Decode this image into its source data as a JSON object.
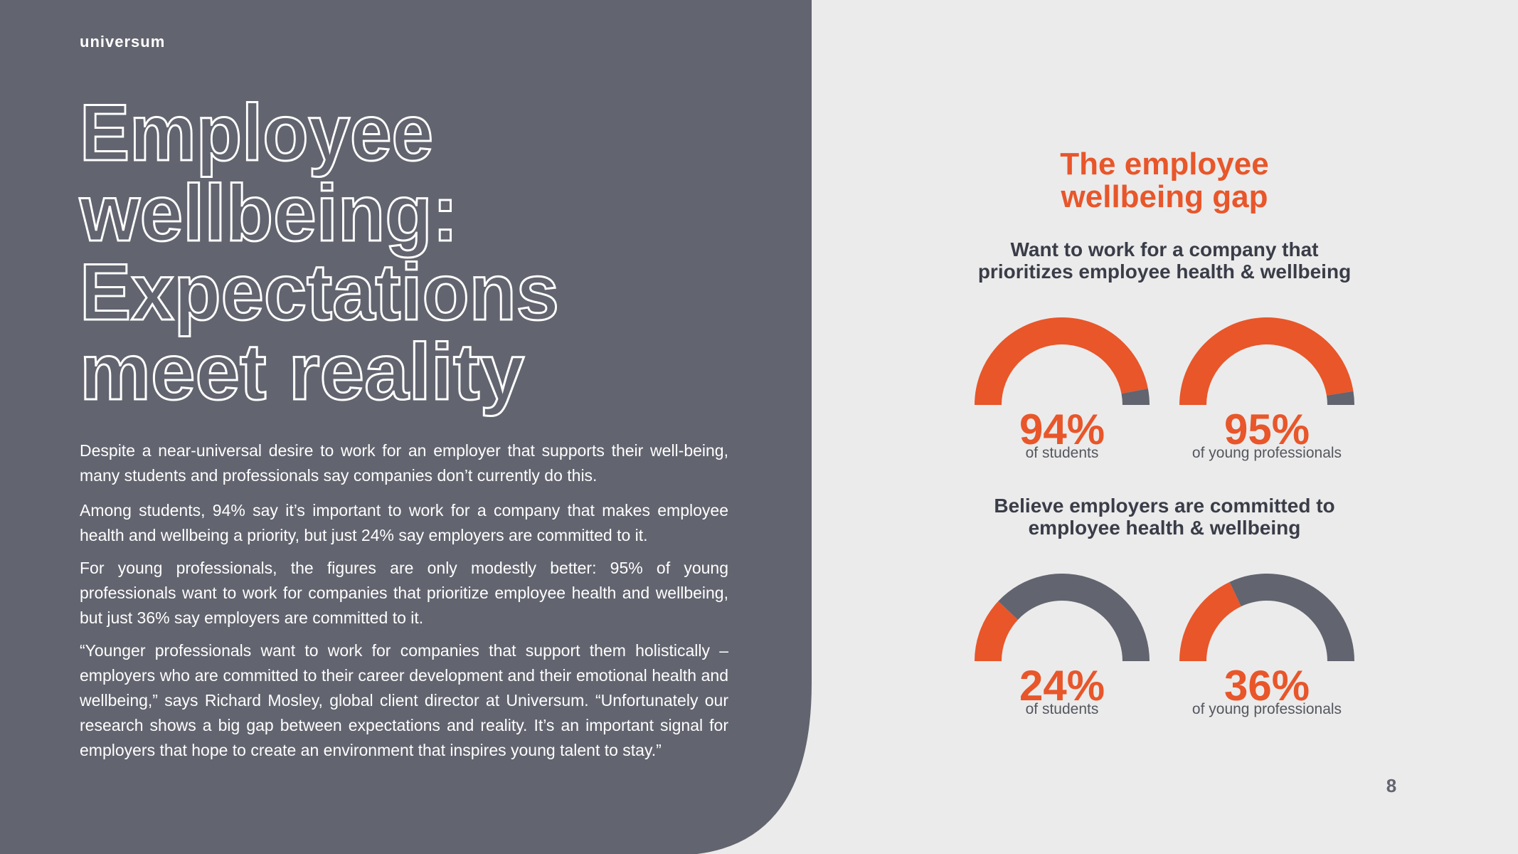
{
  "logo": "universum",
  "title_lines": [
    "Employee",
    "wellbeing:",
    "Expectations",
    "meet reality"
  ],
  "paragraphs": [
    "Despite a near-universal desire to work for an employer that supports their well-being, many students and professionals say companies don’t currently do this.",
    "Among students, 94% say it’s important to work for a company that makes employee health and wellbeing a priority, but just 24% say employers are committed to it.",
    "For young professionals, the figures are only modestly better: 95% of young professionals want to work for companies that prioritize employee health and wellbeing, but just 36% say employers are committed to it.",
    "“Younger professionals want to work for companies that support them holistically – employers who are committed to their career development and their emotional health and wellbeing,” says Richard Mosley, global client director at Universum. “Unfortunately our research shows a big gap between expectations and reality. It’s an important signal for employers that hope to create an environment that inspires young talent to stay.”"
  ],
  "infographic": {
    "title_lines": [
      "The employee",
      "wellbeing gap"
    ],
    "colors": {
      "filled": "#e8562a",
      "rest": "#62646f"
    },
    "groups": [
      {
        "heading_lines": [
          "Want to work for a company that",
          "prioritizes employee health & wellbeing"
        ],
        "gauges": [
          {
            "value": 94,
            "value_label": "94%",
            "caption": "of students"
          },
          {
            "value": 95,
            "value_label": "95%",
            "caption": "of young professionals"
          }
        ]
      },
      {
        "heading_lines": [
          "Believe employers are committed to",
          "employee health & wellbeing"
        ],
        "gauges": [
          {
            "value": 24,
            "value_label": "24%",
            "caption": "of students"
          },
          {
            "value": 36,
            "value_label": "36%",
            "caption": "of young professionals"
          }
        ]
      }
    ]
  },
  "page_number": "8"
}
